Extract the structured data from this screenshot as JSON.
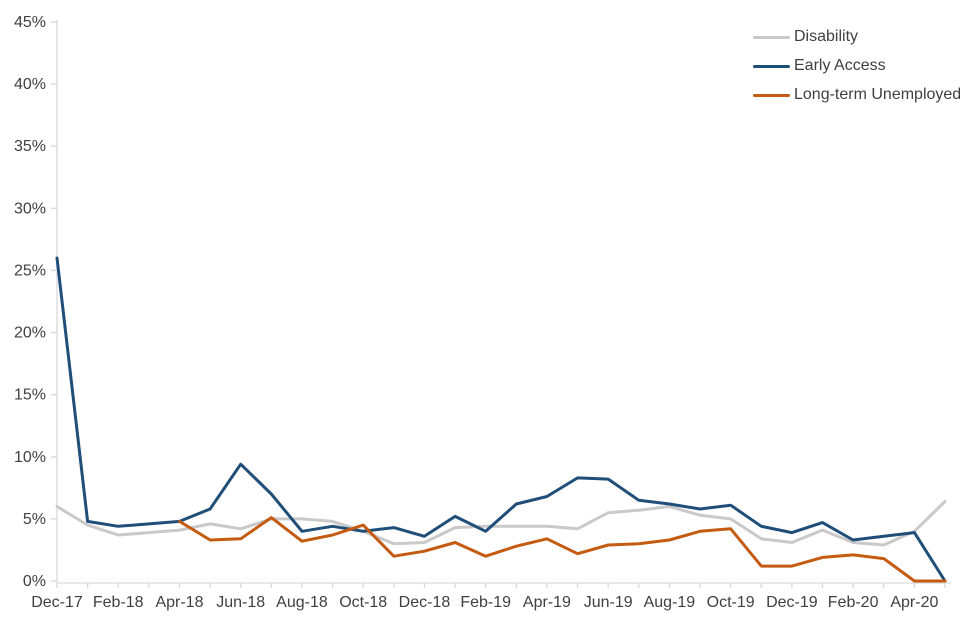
{
  "chart_data": {
    "type": "line",
    "title": "",
    "xlabel": "",
    "ylabel": "",
    "ylim": [
      0,
      45
    ],
    "y_tick_step": 5,
    "y_tick_suffix": "%",
    "x_label_every": 2,
    "grid": false,
    "legend_position": "top-right",
    "axis_color": "#d9d9d9",
    "label_color": "#404040",
    "categories": [
      "Dec-17",
      "Jan-18",
      "Feb-18",
      "Mar-18",
      "Apr-18",
      "May-18",
      "Jun-18",
      "Jul-18",
      "Aug-18",
      "Sep-18",
      "Oct-18",
      "Nov-18",
      "Dec-18",
      "Jan-19",
      "Feb-19",
      "Mar-19",
      "Apr-19",
      "May-19",
      "Jun-19",
      "Jul-19",
      "Aug-19",
      "Sep-19",
      "Oct-19",
      "Nov-19",
      "Dec-19",
      "Jan-20",
      "Feb-20",
      "Mar-20",
      "Apr-20",
      "May-20"
    ],
    "x_axis_labels_shown": [
      "Dec-17",
      "Feb-18",
      "Apr-18",
      "Jun-18",
      "Aug-18",
      "Oct-18",
      "Dec-18",
      "Feb-19",
      "Apr-19",
      "Jun-19",
      "Aug-19",
      "Oct-19",
      "Dec-19",
      "Feb-20",
      "Apr-20"
    ],
    "y_axis_labels_shown": [
      "0%",
      "5%",
      "10%",
      "15%",
      "20%",
      "25%",
      "30%",
      "35%",
      "40%",
      "45%"
    ],
    "series": [
      {
        "name": "Disability",
        "color": "#c9c9c9",
        "values": [
          6.0,
          4.5,
          3.7,
          3.9,
          4.1,
          4.6,
          4.2,
          5.0,
          5.0,
          4.8,
          4.0,
          3.0,
          3.1,
          4.3,
          4.4,
          4.4,
          4.4,
          4.2,
          5.5,
          5.7,
          6.0,
          5.3,
          5.0,
          3.4,
          3.1,
          4.1,
          3.1,
          2.9,
          4.0,
          6.4
        ]
      },
      {
        "name": "Early Access",
        "color": "#1f4e79",
        "values": [
          26.0,
          4.8,
          4.4,
          4.6,
          4.8,
          5.8,
          9.4,
          7.0,
          4.0,
          4.4,
          4.0,
          4.3,
          3.6,
          5.2,
          4.0,
          6.2,
          6.8,
          8.3,
          8.2,
          6.5,
          6.2,
          5.8,
          6.1,
          4.4,
          3.9,
          4.7,
          3.3,
          3.6,
          3.9,
          0.0
        ]
      },
      {
        "name": "Long-term Unemployed",
        "color": "#c55a11",
        "values": [
          null,
          null,
          null,
          null,
          4.8,
          3.3,
          3.4,
          5.1,
          3.2,
          3.7,
          4.5,
          2.0,
          2.4,
          3.1,
          2.0,
          2.8,
          3.4,
          2.2,
          2.9,
          3.0,
          3.3,
          4.0,
          4.2,
          1.2,
          1.2,
          1.9,
          2.1,
          1.8,
          0.0,
          0.0
        ]
      }
    ]
  }
}
